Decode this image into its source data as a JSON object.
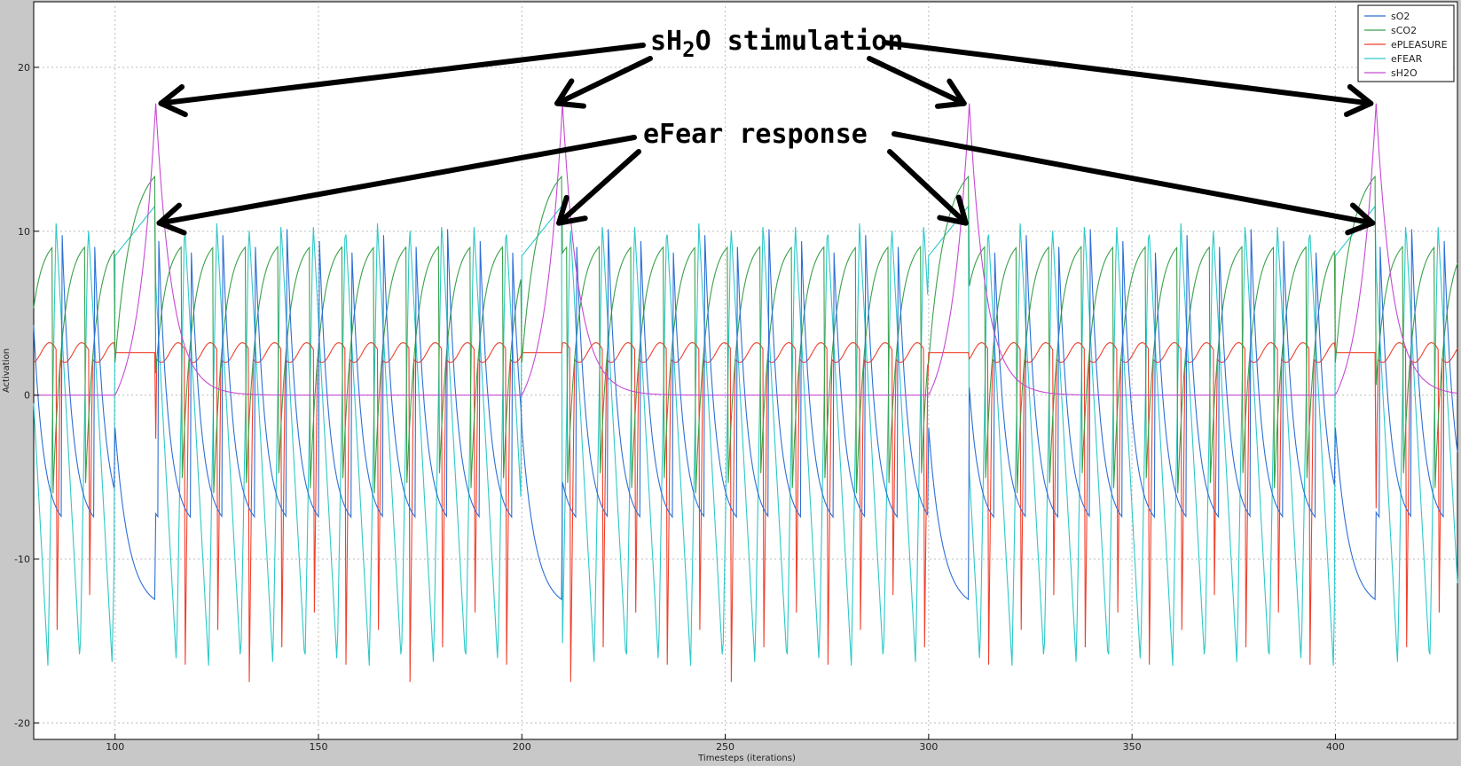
{
  "chart_data": {
    "type": "line",
    "title": "",
    "xlabel": "Timesteps (iterations)",
    "ylabel": "Activation",
    "xlim": [
      80,
      430
    ],
    "ylim": [
      -21,
      24
    ],
    "xticks": [
      100,
      150,
      200,
      250,
      300,
      350,
      400
    ],
    "yticks": [
      -20,
      -10,
      0,
      10,
      20
    ],
    "grid": true,
    "legend_position": "top-right",
    "period": 7.9,
    "stim_windows": [
      [
        100,
        110
      ],
      [
        200,
        210
      ],
      [
        300,
        310
      ],
      [
        400,
        410
      ]
    ],
    "series": [
      {
        "name": "sO2",
        "color": "#2d6fd6",
        "peak": 10.5,
        "trough": -8.2,
        "stim_min": -12.5
      },
      {
        "name": "sCO2",
        "color": "#3aa14a",
        "peak": 9.7,
        "trough": -6.3,
        "stim_peak": 13.4
      },
      {
        "name": "ePLEASURE",
        "color": "#f0402c",
        "baseline": 2.6,
        "trough": -17.5
      },
      {
        "name": "eFEAR",
        "color": "#2ec8c8",
        "peak": 10.6,
        "trough": -16.5,
        "stim_level": 11.6
      },
      {
        "name": "sH2O",
        "color": "#c64ad4",
        "peak": 17.8,
        "baseline": 0
      }
    ],
    "annotations": [
      {
        "text_pre": "sH",
        "text_sub": "2",
        "text_post": "O stimulation",
        "targets_x": [
          110,
          210,
          310,
          410
        ],
        "target_y": 17.8
      },
      {
        "text": "eFear response",
        "targets_x": [
          110,
          210,
          310,
          410
        ],
        "target_y": 10.5
      }
    ]
  }
}
